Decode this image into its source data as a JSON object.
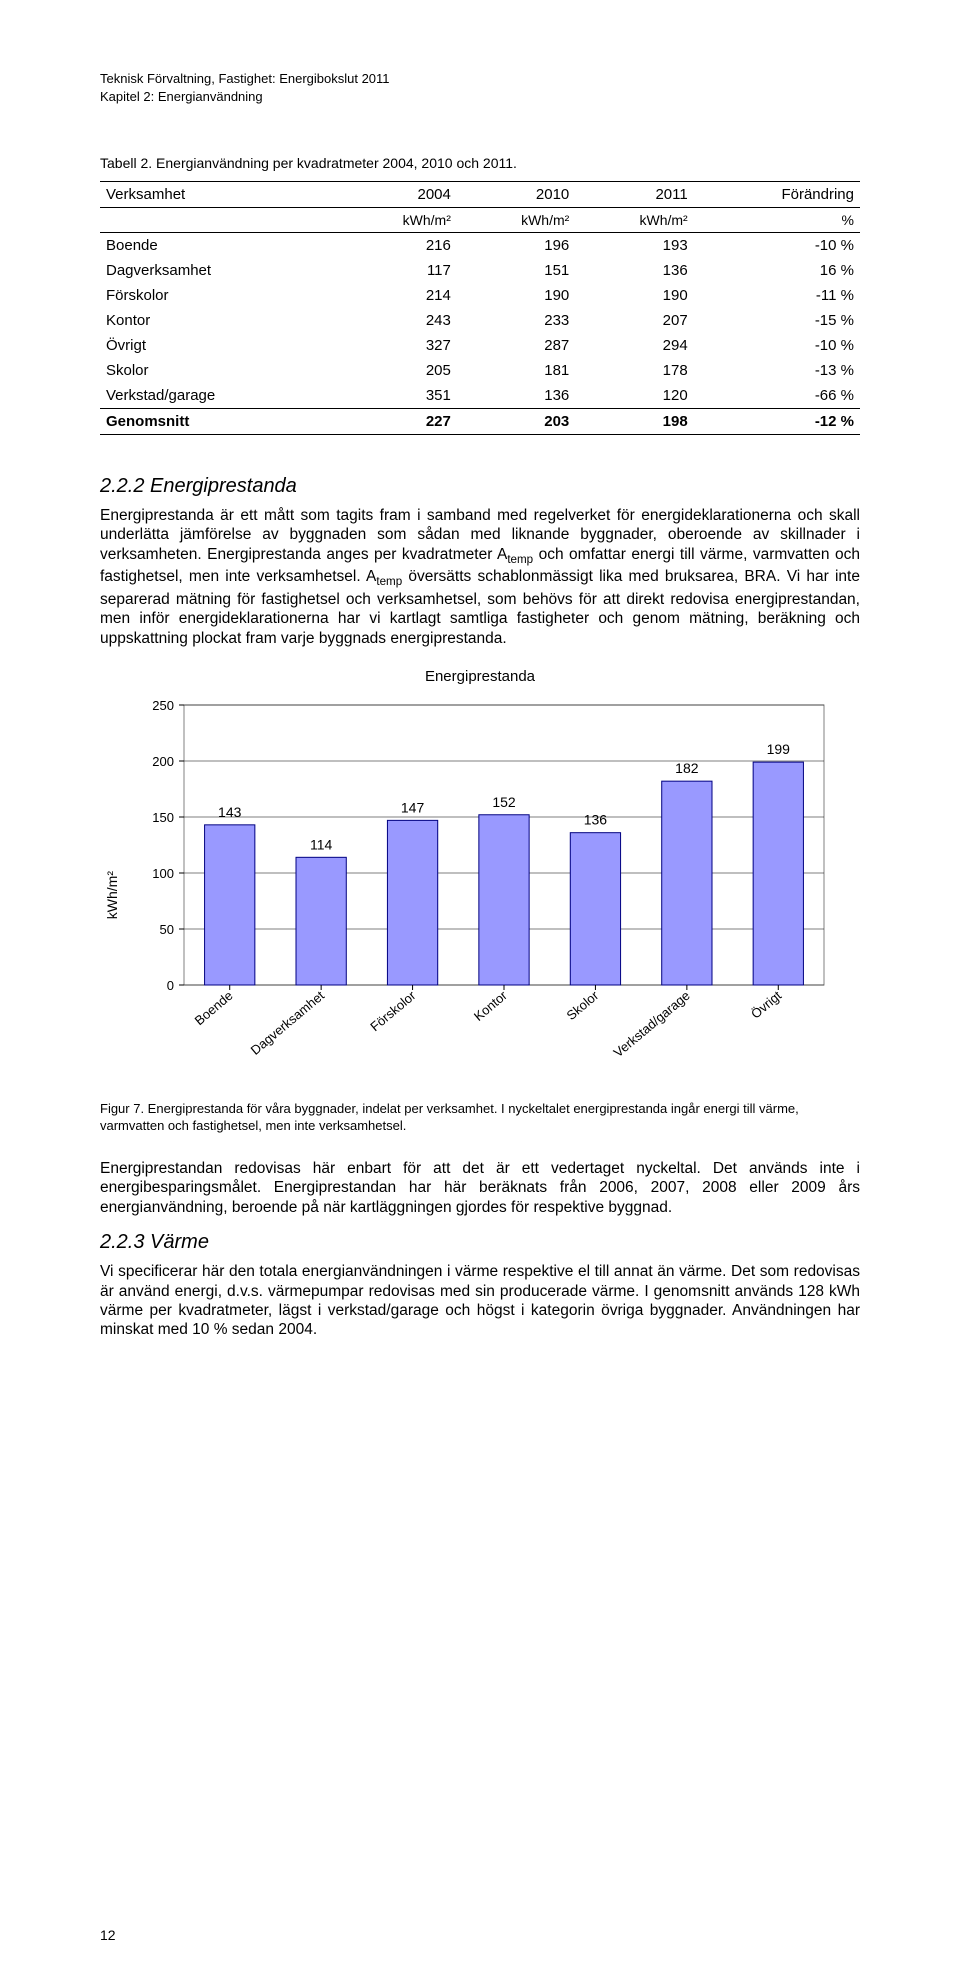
{
  "header": {
    "line1": "Teknisk Förvaltning, Fastighet: Energibokslut 2011",
    "line2": "Kapitel 2: Energianvändning"
  },
  "table": {
    "caption": "Tabell 2. Energianvändning per kvadratmeter 2004, 2010 och 2011.",
    "col_labels": [
      "Verksamhet",
      "2004",
      "2010",
      "2011",
      "Förändring"
    ],
    "unit_labels": [
      "",
      "kWh/m²",
      "kWh/m²",
      "kWh/m²",
      "%"
    ],
    "rows": [
      {
        "name": "Boende",
        "v2004": "216",
        "v2010": "196",
        "v2011": "193",
        "chg": "-10 %"
      },
      {
        "name": "Dagverksamhet",
        "v2004": "117",
        "v2010": "151",
        "v2011": "136",
        "chg": "16 %"
      },
      {
        "name": "Förskolor",
        "v2004": "214",
        "v2010": "190",
        "v2011": "190",
        "chg": "-11 %"
      },
      {
        "name": "Kontor",
        "v2004": "243",
        "v2010": "233",
        "v2011": "207",
        "chg": "-15 %"
      },
      {
        "name": "Övrigt",
        "v2004": "327",
        "v2010": "287",
        "v2011": "294",
        "chg": "-10 %"
      },
      {
        "name": "Skolor",
        "v2004": "205",
        "v2010": "181",
        "v2011": "178",
        "chg": "-13 %"
      },
      {
        "name": "Verkstad/garage",
        "v2004": "351",
        "v2010": "136",
        "v2011": "120",
        "chg": "-66 %"
      }
    ],
    "summary": {
      "name": "Genomsnitt",
      "v2004": "227",
      "v2010": "203",
      "v2011": "198",
      "chg": "-12 %"
    }
  },
  "section222": {
    "heading": "2.2.2    Energiprestanda",
    "para1_a": "Energiprestanda är ett mått som tagits fram i samband med regelverket för energideklarationerna och skall underlätta jämförelse av byggnaden som sådan med liknande byggnader, oberoende av skillnader i verksamheten. Energiprestanda anges per kvadratmeter A",
    "para1_temp1": "temp",
    "para1_b": " och omfattar energi till värme, varmvatten och fastighetsel, men inte verksamhetsel. A",
    "para1_temp2": "temp",
    "para1_c": " översätts schablonmässigt lika med bruksarea, BRA. Vi har inte separerad mätning för fastighetsel och verksamhetsel, som behövs för att direkt redovisa energiprestandan, men inför energideklarationerna har vi kartlagt samtliga fastigheter och genom mätning, beräkning och uppskattning plockat fram varje byggnads energiprestanda."
  },
  "chart": {
    "title": "Energiprestanda",
    "y_label": "kWh/m²",
    "ylim": [
      0,
      250
    ],
    "ytick_step": 50,
    "categories": [
      "Boende",
      "Dagverksamhet",
      "Förskolor",
      "Kontor",
      "Skolor",
      "Verkstad/garage",
      "Övrigt"
    ],
    "values": [
      143,
      114,
      147,
      152,
      136,
      182,
      199
    ],
    "bar_fill": "#9999ff",
    "bar_stroke": "#000080",
    "plot_border": "#808080",
    "grid_color": "#000000",
    "background": "#ffffff",
    "label_fontsize": 14,
    "axis_fontsize": 13
  },
  "figure7": {
    "caption": "Figur 7. Energiprestanda för våra byggnader, indelat per verksamhet. I nyckeltalet energiprestanda ingår energi till värme, varmvatten och fastighetsel, men inte verksamhetsel."
  },
  "afterchart": {
    "para": "Energiprestandan redovisas här enbart för att det är ett vedertaget nyckeltal. Det används inte i energibesparingsmålet. Energiprestandan har här beräknats från 2006, 2007, 2008 eller 2009 års energianvändning, beroende på när kartläggningen gjordes för respektive byggnad."
  },
  "section223": {
    "heading": "2.2.3    Värme",
    "para": "Vi specificerar här den totala energianvändningen i värme respektive el till annat än värme. Det som redovisas är använd energi, d.v.s. värmepumpar redovisas med sin producerade värme. I genomsnitt används 128 kWh värme per kvadratmeter, lägst i verkstad/garage och högst i kategorin övriga byggnader. Användningen har minskat med 10 % sedan 2004."
  },
  "page_number": "12"
}
